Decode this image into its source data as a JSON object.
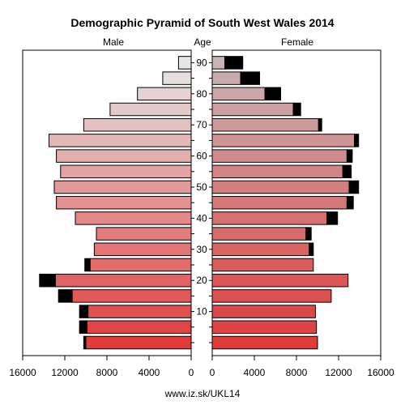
{
  "chart_data": {
    "type": "bar",
    "title": "Demographic Pyramid of South West Wales 2014",
    "left_label": "Male",
    "center_label": "Age",
    "right_label": "Female",
    "footer": "www.iz.sk/UKL14",
    "age_ticks": [
      "10",
      "20",
      "30",
      "40",
      "50",
      "60",
      "70",
      "80",
      "90"
    ],
    "x_ticks_male": [
      "16000",
      "12000",
      "8000",
      "4000",
      "0"
    ],
    "x_ticks_female": [
      "0",
      "4000",
      "8000",
      "12000",
      "16000"
    ],
    "xlim": [
      0,
      16000
    ],
    "age_groups": [
      "0-4",
      "5-9",
      "10-14",
      "15-19",
      "20-24",
      "25-29",
      "30-34",
      "35-39",
      "40-44",
      "45-49",
      "50-54",
      "55-59",
      "60-64",
      "65-69",
      "70-74",
      "75-79",
      "80-84",
      "85-89",
      "90+"
    ],
    "series": [
      {
        "name": "Male",
        "values": [
          10000,
          9900,
          9800,
          11300,
          12900,
          9600,
          9200,
          9000,
          11000,
          12800,
          13000,
          12400,
          12800,
          13500,
          10200,
          7700,
          5100,
          2700,
          1200
        ],
        "excess": [
          200,
          700,
          800,
          1300,
          1500,
          500,
          0,
          0,
          0,
          0,
          0,
          0,
          0,
          0,
          0,
          0,
          0,
          0,
          0
        ]
      },
      {
        "name": "Female",
        "values": [
          10000,
          9900,
          9800,
          11300,
          12900,
          9600,
          9200,
          8900,
          10900,
          12800,
          13000,
          12400,
          12800,
          13500,
          10100,
          7700,
          5000,
          2700,
          1200
        ],
        "excess": [
          0,
          0,
          0,
          0,
          0,
          0,
          400,
          500,
          1000,
          600,
          900,
          800,
          500,
          400,
          300,
          700,
          1500,
          1800,
          1700
        ]
      }
    ],
    "colors": {
      "male_light": "#e6e6e6",
      "male_dark": "#e03c3c",
      "female_light": "#c8b4b4",
      "female_dark": "#e03c3c",
      "excess": "#000000"
    }
  }
}
